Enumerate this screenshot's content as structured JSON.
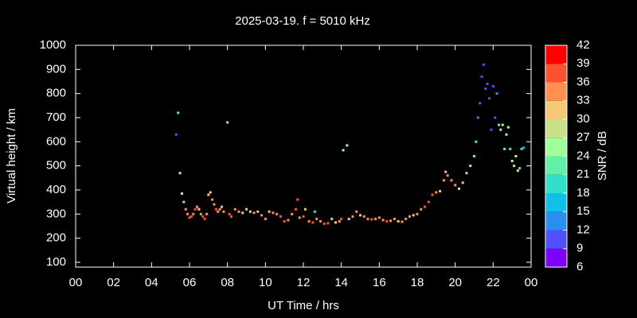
{
  "chart_data": {
    "type": "scatter",
    "title": "2025-03-19. f = 5010 kHz",
    "x_label": "UT Time / hrs",
    "y_label": "Virtual height / km",
    "xlim": [
      0,
      24
    ],
    "xticks": [
      {
        "value": 0,
        "label": "00"
      },
      {
        "value": 2,
        "label": "02"
      },
      {
        "value": 4,
        "label": "04"
      },
      {
        "value": 6,
        "label": "06"
      },
      {
        "value": 8,
        "label": "08"
      },
      10,
      12,
      14,
      16,
      18,
      20,
      22,
      {
        "value": 24,
        "label": "00"
      }
    ],
    "ylim": [
      80,
      1000
    ],
    "yticks": [
      100,
      200,
      300,
      400,
      500,
      600,
      700,
      800,
      900,
      1000
    ],
    "colorbar": {
      "label": "SNR / dB",
      "lim": [
        6,
        42
      ],
      "ticks": [
        6,
        9,
        12,
        15,
        18,
        21,
        24,
        27,
        30,
        33,
        36,
        39,
        42
      ],
      "colors": [
        "#8000ff",
        "#5050ff",
        "#2a90f0",
        "#10c0e8",
        "#30e0c8",
        "#60f0a8",
        "#a0ff98",
        "#c8e088",
        "#f4c878",
        "#ff9050",
        "#ff5030",
        "#ff0000"
      ]
    },
    "x": [
      5.3,
      5.4,
      5.5,
      5.6,
      5.7,
      5.8,
      5.9,
      6.0,
      6.1,
      6.2,
      6.3,
      6.4,
      6.5,
      6.6,
      6.7,
      6.8,
      6.9,
      7.0,
      7.1,
      7.2,
      7.3,
      7.4,
      7.5,
      7.6,
      7.7,
      7.8,
      8.0,
      8.1,
      8.2,
      8.4,
      8.6,
      8.8,
      9.0,
      9.2,
      9.4,
      9.6,
      9.8,
      10.0,
      10.2,
      10.4,
      10.6,
      10.8,
      11.0,
      11.2,
      11.4,
      11.6,
      11.7,
      11.8,
      12.0,
      12.1,
      12.3,
      12.5,
      12.6,
      12.7,
      12.9,
      13.1,
      13.3,
      13.5,
      13.7,
      13.9,
      14.0,
      14.1,
      14.3,
      14.4,
      14.6,
      14.8,
      15.0,
      15.2,
      15.4,
      15.6,
      15.8,
      16.0,
      16.2,
      16.4,
      16.6,
      16.8,
      17.0,
      17.2,
      17.4,
      17.6,
      17.8,
      18.0,
      18.2,
      18.4,
      18.6,
      18.8,
      19.0,
      19.2,
      19.4,
      19.5,
      19.6,
      19.8,
      20.0,
      20.2,
      20.4,
      20.6,
      20.8,
      21.0,
      21.1,
      21.2,
      21.3,
      21.4,
      21.5,
      21.6,
      21.7,
      21.8,
      21.9,
      22.0,
      22.1,
      22.2,
      22.3,
      22.4,
      22.5,
      22.6,
      22.7,
      22.8,
      22.9,
      23.0,
      23.1,
      23.2,
      23.3,
      23.4,
      23.5,
      23.6
    ],
    "values": [
      630,
      720,
      470,
      385,
      350,
      320,
      300,
      285,
      290,
      300,
      320,
      330,
      320,
      300,
      290,
      280,
      300,
      380,
      390,
      360,
      340,
      320,
      310,
      320,
      330,
      310,
      680,
      300,
      290,
      320,
      310,
      305,
      320,
      310,
      305,
      310,
      295,
      280,
      310,
      305,
      300,
      290,
      270,
      275,
      300,
      320,
      360,
      285,
      290,
      320,
      270,
      265,
      310,
      280,
      270,
      260,
      262,
      280,
      265,
      270,
      280,
      565,
      585,
      280,
      290,
      310,
      295,
      290,
      280,
      278,
      280,
      285,
      275,
      270,
      272,
      280,
      270,
      268,
      280,
      290,
      295,
      300,
      320,
      330,
      350,
      380,
      390,
      395,
      440,
      475,
      460,
      440,
      420,
      405,
      430,
      470,
      500,
      540,
      600,
      700,
      760,
      870,
      920,
      820,
      840,
      780,
      650,
      830,
      700,
      800,
      670,
      650,
      670,
      570,
      630,
      660,
      570,
      520,
      500,
      540,
      480,
      490,
      570,
      575
    ],
    "snr": [
      10,
      22,
      24,
      24,
      30,
      33,
      33,
      36,
      36,
      33,
      36,
      33,
      30,
      33,
      36,
      36,
      33,
      30,
      30,
      33,
      33,
      36,
      33,
      33,
      30,
      33,
      30,
      36,
      36,
      33,
      33,
      30,
      27,
      30,
      33,
      30,
      33,
      33,
      30,
      33,
      33,
      36,
      36,
      33,
      33,
      36,
      36,
      33,
      36,
      30,
      33,
      36,
      18,
      33,
      33,
      36,
      36,
      27,
      30,
      33,
      36,
      24,
      24,
      30,
      33,
      33,
      30,
      33,
      33,
      36,
      33,
      33,
      33,
      36,
      33,
      33,
      30,
      33,
      33,
      33,
      30,
      33,
      33,
      36,
      36,
      36,
      33,
      30,
      33,
      30,
      33,
      33,
      33,
      27,
      30,
      27,
      24,
      21,
      21,
      12,
      9,
      9,
      9,
      9,
      9,
      9,
      9,
      9,
      9,
      12,
      21,
      24,
      24,
      21,
      24,
      24,
      21,
      24,
      27,
      24,
      24,
      21,
      18,
      15
    ]
  }
}
